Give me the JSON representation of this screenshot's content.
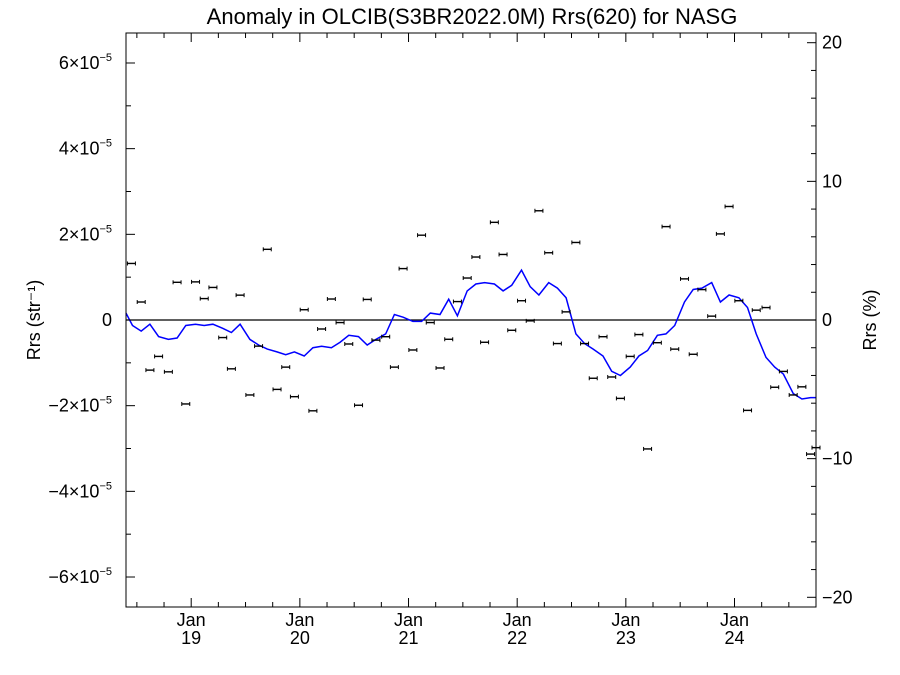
{
  "chart_data": {
    "type": "scatter",
    "title": "Anomaly in OLCIB(S3BR2022.0M) Rrs(620) for NASG",
    "ylabel": "Rrs (str⁻¹)",
    "ylabel_right": "Rrs (%)",
    "ylim": [
      -6.7e-05,
      6.7e-05
    ],
    "ylim_right": [
      -20.7,
      20.7
    ],
    "xlim": [
      2018.4,
      2024.75
    ],
    "x_ticks": [
      {
        "x": 2019.0,
        "month": "Jan",
        "year": "19"
      },
      {
        "x": 2020.0,
        "month": "Jan",
        "year": "20"
      },
      {
        "x": 2021.0,
        "month": "Jan",
        "year": "21"
      },
      {
        "x": 2022.0,
        "month": "Jan",
        "year": "22"
      },
      {
        "x": 2023.0,
        "month": "Jan",
        "year": "23"
      },
      {
        "x": 2024.0,
        "month": "Jan",
        "year": "24"
      }
    ],
    "y_ticks_left": [
      {
        "y": 6e-05,
        "mantissa": "6×10",
        "exponent": "−5"
      },
      {
        "y": 4e-05,
        "mantissa": "4×10",
        "exponent": "−5"
      },
      {
        "y": 2e-05,
        "mantissa": "2×10",
        "exponent": "−5"
      },
      {
        "y": 0,
        "mantissa": "0",
        "exponent": ""
      },
      {
        "y": -2e-05,
        "mantissa": "−2×10",
        "exponent": "−5"
      },
      {
        "y": -4e-05,
        "mantissa": "−4×10",
        "exponent": "−5"
      },
      {
        "y": -6e-05,
        "mantissa": "−6×10",
        "exponent": "−5"
      }
    ],
    "y_ticks_right": [
      {
        "y": 20,
        "label": "20"
      },
      {
        "y": 10,
        "label": "10"
      },
      {
        "y": 0,
        "label": "0"
      },
      {
        "y": -10,
        "label": "−10"
      },
      {
        "y": -20,
        "label": "−20"
      }
    ],
    "zero_line": true,
    "series": [
      {
        "kind": "points_with_errorbars",
        "color": "#000000",
        "points": [
          {
            "x": 2018.45,
            "y": 1.32e-05,
            "err": 3e-07
          },
          {
            "x": 2018.54,
            "y": 4.2e-06,
            "err": 3e-07
          },
          {
            "x": 2018.62,
            "y": -1.17e-05,
            "err": 3e-07
          },
          {
            "x": 2018.7,
            "y": -8.5e-06,
            "err": 3e-07
          },
          {
            "x": 2018.79,
            "y": -1.21e-05,
            "err": 3e-07
          },
          {
            "x": 2018.87,
            "y": 8.8e-06,
            "err": 3e-07
          },
          {
            "x": 2018.95,
            "y": -1.96e-05,
            "err": 3e-07
          },
          {
            "x": 2019.04,
            "y": 8.9e-06,
            "err": 3e-07
          },
          {
            "x": 2019.12,
            "y": 5e-06,
            "err": 3e-07
          },
          {
            "x": 2019.2,
            "y": 7.6e-06,
            "err": 3e-07
          },
          {
            "x": 2019.29,
            "y": -4.1e-06,
            "err": 3e-07
          },
          {
            "x": 2019.37,
            "y": -1.14e-05,
            "err": 3e-07
          },
          {
            "x": 2019.45,
            "y": 5.8e-06,
            "err": 3e-07
          },
          {
            "x": 2019.54,
            "y": -1.75e-05,
            "err": 3e-07
          },
          {
            "x": 2019.62,
            "y": -6.1e-06,
            "err": 3e-07
          },
          {
            "x": 2019.7,
            "y": 1.65e-05,
            "err": 3e-07
          },
          {
            "x": 2019.79,
            "y": -1.62e-05,
            "err": 3e-07
          },
          {
            "x": 2019.87,
            "y": -1.1e-05,
            "err": 3e-07
          },
          {
            "x": 2019.95,
            "y": -1.79e-05,
            "err": 3e-07
          },
          {
            "x": 2020.04,
            "y": 2.4e-06,
            "err": 3e-07
          },
          {
            "x": 2020.12,
            "y": -2.12e-05,
            "err": 3e-07
          },
          {
            "x": 2020.2,
            "y": -2.1e-06,
            "err": 3e-07
          },
          {
            "x": 2020.29,
            "y": 4.9e-06,
            "err": 3e-07
          },
          {
            "x": 2020.37,
            "y": -6e-07,
            "err": 3e-07
          },
          {
            "x": 2020.45,
            "y": -5.6e-06,
            "err": 3e-07
          },
          {
            "x": 2020.54,
            "y": -1.99e-05,
            "err": 3e-07
          },
          {
            "x": 2020.62,
            "y": 4.8e-06,
            "err": 3e-07
          },
          {
            "x": 2020.7,
            "y": -4.7e-06,
            "err": 3e-07
          },
          {
            "x": 2020.79,
            "y": -3.9e-06,
            "err": 3e-07
          },
          {
            "x": 2020.87,
            "y": -1.1e-05,
            "err": 3e-07
          },
          {
            "x": 2020.95,
            "y": 1.2e-05,
            "err": 3e-07
          },
          {
            "x": 2021.04,
            "y": -7e-06,
            "err": 3e-07
          },
          {
            "x": 2021.12,
            "y": 1.98e-05,
            "err": 3e-07
          },
          {
            "x": 2021.2,
            "y": -6e-07,
            "err": 3e-07
          },
          {
            "x": 2021.29,
            "y": -1.12e-05,
            "err": 3e-07
          },
          {
            "x": 2021.37,
            "y": -4.5e-06,
            "err": 3e-07
          },
          {
            "x": 2021.45,
            "y": 4.3e-06,
            "err": 3e-07
          },
          {
            "x": 2021.54,
            "y": 9.8e-06,
            "err": 3e-07
          },
          {
            "x": 2021.62,
            "y": 1.47e-05,
            "err": 3e-07
          },
          {
            "x": 2021.7,
            "y": -5.2e-06,
            "err": 3e-07
          },
          {
            "x": 2021.79,
            "y": 2.28e-05,
            "err": 3e-07
          },
          {
            "x": 2021.87,
            "y": 1.53e-05,
            "err": 3e-07
          },
          {
            "x": 2021.95,
            "y": -2.4e-06,
            "err": 3e-07
          },
          {
            "x": 2022.04,
            "y": 4.5e-06,
            "err": 3e-07
          },
          {
            "x": 2022.12,
            "y": -2e-07,
            "err": 3e-07
          },
          {
            "x": 2022.2,
            "y": 2.55e-05,
            "err": 3e-07
          },
          {
            "x": 2022.29,
            "y": 1.57e-05,
            "err": 3e-07
          },
          {
            "x": 2022.37,
            "y": -5.5e-06,
            "err": 3e-07
          },
          {
            "x": 2022.45,
            "y": 1.9e-06,
            "err": 3e-07
          },
          {
            "x": 2022.54,
            "y": 1.81e-05,
            "err": 3e-07
          },
          {
            "x": 2022.62,
            "y": -5.5e-06,
            "err": 3e-07
          },
          {
            "x": 2022.7,
            "y": -1.36e-05,
            "err": 3e-07
          },
          {
            "x": 2022.79,
            "y": -3.9e-06,
            "err": 3e-07
          },
          {
            "x": 2022.87,
            "y": -1.33e-05,
            "err": 3e-07
          },
          {
            "x": 2022.95,
            "y": -1.83e-05,
            "err": 3e-07
          },
          {
            "x": 2023.04,
            "y": -8.5e-06,
            "err": 3e-07
          },
          {
            "x": 2023.12,
            "y": -3.4e-06,
            "err": 3e-07
          },
          {
            "x": 2023.2,
            "y": -3.01e-05,
            "err": 3e-07
          },
          {
            "x": 2023.29,
            "y": -5.3e-06,
            "err": 3e-07
          },
          {
            "x": 2023.37,
            "y": 2.18e-05,
            "err": 3e-07
          },
          {
            "x": 2023.45,
            "y": -6.8e-06,
            "err": 3e-07
          },
          {
            "x": 2023.54,
            "y": 9.6e-06,
            "err": 3e-07
          },
          {
            "x": 2023.62,
            "y": -8e-06,
            "err": 3e-07
          },
          {
            "x": 2023.7,
            "y": 7.1e-06,
            "err": 3e-07
          },
          {
            "x": 2023.79,
            "y": 9e-07,
            "err": 3e-07
          },
          {
            "x": 2023.87,
            "y": 2.01e-05,
            "err": 3e-07
          },
          {
            "x": 2023.95,
            "y": 2.65e-05,
            "err": 3e-07
          },
          {
            "x": 2024.04,
            "y": 4.5e-06,
            "err": 3e-07
          },
          {
            "x": 2024.12,
            "y": -2.11e-05,
            "err": 3e-07
          },
          {
            "x": 2024.2,
            "y": 2.3e-06,
            "err": 3e-07
          },
          {
            "x": 2024.29,
            "y": 2.9e-06,
            "err": 3e-07
          },
          {
            "x": 2024.37,
            "y": -1.57e-05,
            "err": 3e-07
          },
          {
            "x": 2024.45,
            "y": -1.2e-05,
            "err": 3e-07
          },
          {
            "x": 2024.54,
            "y": -1.75e-05,
            "err": 3e-07
          },
          {
            "x": 2024.62,
            "y": -1.56e-05,
            "err": 3e-07
          },
          {
            "x": 2024.7,
            "y": -3.13e-05,
            "err": 3e-07
          },
          {
            "x": 2024.75,
            "y": -2.98e-05,
            "err": 3e-07
          }
        ]
      },
      {
        "kind": "line",
        "color": "#0000ff",
        "axis": "right",
        "x": [
          2018.4,
          2018.46,
          2018.54,
          2018.62,
          2018.7,
          2018.79,
          2018.87,
          2018.95,
          2019.04,
          2019.12,
          2019.2,
          2019.29,
          2019.37,
          2019.45,
          2019.54,
          2019.62,
          2019.7,
          2019.79,
          2019.87,
          2019.95,
          2020.04,
          2020.12,
          2020.2,
          2020.29,
          2020.37,
          2020.45,
          2020.54,
          2020.62,
          2020.7,
          2020.79,
          2020.87,
          2020.95,
          2021.04,
          2021.12,
          2021.2,
          2021.29,
          2021.37,
          2021.45,
          2021.54,
          2021.62,
          2021.7,
          2021.79,
          2021.87,
          2021.95,
          2022.04,
          2022.12,
          2022.2,
          2022.29,
          2022.37,
          2022.45,
          2022.54,
          2022.62,
          2022.7,
          2022.79,
          2022.87,
          2022.95,
          2023.04,
          2023.12,
          2023.2,
          2023.29,
          2023.37,
          2023.45,
          2023.54,
          2023.62,
          2023.7,
          2023.79,
          2023.87,
          2023.95,
          2024.04,
          2024.12,
          2024.2,
          2024.29,
          2024.37,
          2024.45,
          2024.54,
          2024.62,
          2024.7,
          2024.75
        ],
        "y": [
          0.5,
          -0.4,
          -0.8,
          -0.3,
          -1.2,
          -1.4,
          -1.3,
          -0.4,
          -0.3,
          -0.4,
          -0.3,
          -0.6,
          -0.9,
          -0.3,
          -1.4,
          -1.8,
          -2.1,
          -2.3,
          -2.5,
          -2.3,
          -2.6,
          -2.0,
          -1.9,
          -2.0,
          -1.6,
          -1.1,
          -1.2,
          -1.8,
          -1.4,
          -1.0,
          0.4,
          0.2,
          -0.1,
          -0.1,
          0.5,
          0.4,
          1.5,
          0.3,
          2.1,
          2.6,
          2.7,
          2.6,
          2.1,
          2.5,
          3.6,
          2.4,
          1.8,
          2.7,
          2.3,
          1.6,
          -1.0,
          -1.7,
          -2.1,
          -2.6,
          -3.7,
          -4.0,
          -3.4,
          -2.6,
          -2.2,
          -1.1,
          -1.0,
          -0.4,
          1.3,
          2.2,
          2.3,
          2.7,
          1.3,
          1.8,
          1.6,
          0.9,
          -1.0,
          -2.7,
          -3.4,
          -3.9,
          -5.3,
          -5.7,
          -5.6,
          -5.6
        ]
      }
    ]
  }
}
